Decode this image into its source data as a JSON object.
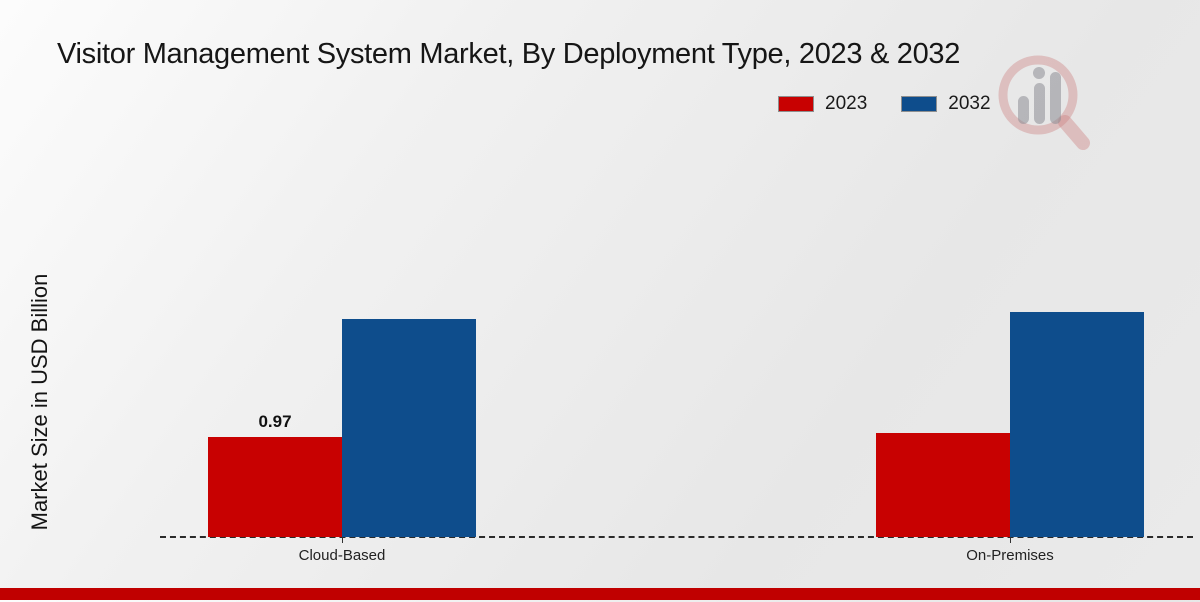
{
  "header": {
    "title": "Visitor Management System Market, By Deployment Type, 2023 & 2032"
  },
  "chart_data": {
    "type": "bar",
    "title": "Visitor Management System Market, By Deployment Type, 2023 & 2032",
    "categories": [
      "Cloud-Based",
      "On-Premises"
    ],
    "series": [
      {
        "name": "2023",
        "color": "#c80101",
        "values": [
          0.97,
          1.01
        ],
        "value_labels": [
          "0.97",
          ""
        ]
      },
      {
        "name": "2032",
        "color": "#0e4d8c",
        "values": [
          2.12,
          2.18
        ],
        "value_labels": [
          "",
          ""
        ]
      }
    ],
    "xlabel": "",
    "ylabel": "Market Size in USD Billion",
    "ylim": [
      0,
      2.6
    ],
    "grid": false,
    "legend_position": "top-right",
    "baseline_style": "dashed",
    "y_axis_ticks_visible": false
  },
  "legend": {
    "items": [
      {
        "label": "2023",
        "color": "#c80101"
      },
      {
        "label": "2032",
        "color": "#0e4d8c"
      }
    ]
  },
  "watermark": {
    "name": "market-research-magnifier-logo"
  },
  "footer": {
    "accent_color": "#c00000"
  }
}
